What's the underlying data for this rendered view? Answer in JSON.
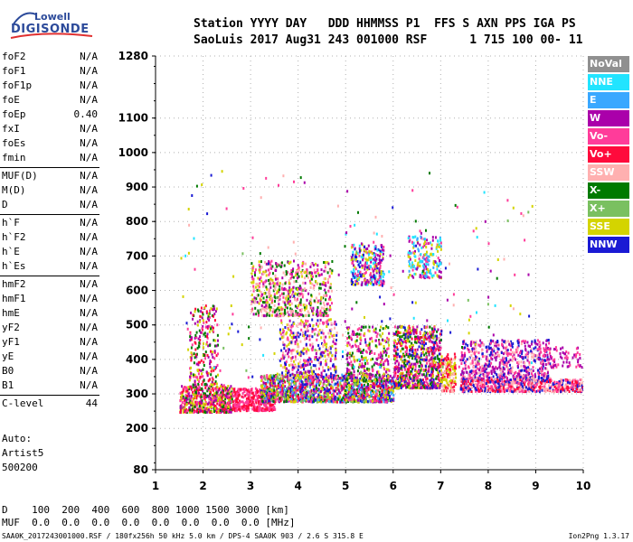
{
  "logo": {
    "line1": "Lowell",
    "line2": "DIGISONDE"
  },
  "header": {
    "labels": "Station YYYY DAY   DDD HHMMSS P1  FFS S AXN PPS IGA PS",
    "values": "SaoLuis 2017 Aug31 243 001000 RSF      1 715 100 00- 11"
  },
  "params": [
    {
      "name": "foF2",
      "value": "N/A"
    },
    {
      "name": "foF1",
      "value": "N/A"
    },
    {
      "name": "foF1p",
      "value": "N/A"
    },
    {
      "name": "foE",
      "value": "N/A"
    },
    {
      "name": "foEp",
      "value": "0.40"
    },
    {
      "name": "fxI",
      "value": "N/A"
    },
    {
      "name": "foEs",
      "value": "N/A"
    },
    {
      "name": "fmin",
      "value": "N/A"
    },
    {
      "name": "MUF(D)",
      "value": "N/A"
    },
    {
      "name": "M(D)",
      "value": "N/A"
    },
    {
      "name": "D",
      "value": "N/A"
    },
    {
      "name": "h`F",
      "value": "N/A"
    },
    {
      "name": "h`F2",
      "value": "N/A"
    },
    {
      "name": "h`E",
      "value": "N/A"
    },
    {
      "name": "h`Es",
      "value": "N/A"
    },
    {
      "name": "hmF2",
      "value": "N/A"
    },
    {
      "name": "hmF1",
      "value": "N/A"
    },
    {
      "name": "hmE",
      "value": "N/A"
    },
    {
      "name": "yF2",
      "value": "N/A"
    },
    {
      "name": "yF1",
      "value": "N/A"
    },
    {
      "name": "yE",
      "value": "N/A"
    },
    {
      "name": "B0",
      "value": "N/A"
    },
    {
      "name": "B1",
      "value": "N/A"
    },
    {
      "name": "C-level",
      "value": "44"
    }
  ],
  "auto": {
    "line1": "Auto:",
    "line2": "Artist5",
    "line3": "500200"
  },
  "legend": [
    {
      "label": "NoVal",
      "color": "#909090"
    },
    {
      "label": "NNE",
      "color": "#22e4ff"
    },
    {
      "label": "E",
      "color": "#3aa8ff"
    },
    {
      "label": "W",
      "color": "#aa00aa"
    },
    {
      "label": "Vo-",
      "color": "#ff3c9a"
    },
    {
      "label": "Vo+",
      "color": "#ff0a3c"
    },
    {
      "label": "SSW",
      "color": "#ffb0b0"
    },
    {
      "label": "X-",
      "color": "#007a00"
    },
    {
      "label": "X+",
      "color": "#7ac060"
    },
    {
      "label": "SSE",
      "color": "#d4d400"
    },
    {
      "label": "NNW",
      "color": "#1a1ad4"
    }
  ],
  "bottom": {
    "d_row": "D    100  200  400  600  800 1000 1500 3000 [km]",
    "muf_row": "MUF  0.0  0.0  0.0  0.0  0.0  0.0  0.0  0.0 [MHz]"
  },
  "footer": "SAA0K_2017243001000.RSF / 180fx256h 50 kHz 5.0 km / DPS-4 SAA0K 903 / 2.6 S 315.8 E",
  "version": "Ion2Png 1.3.17",
  "chart_data": {
    "type": "scatter",
    "xlabel": "",
    "ylabel": "",
    "xlim": [
      1,
      10
    ],
    "ylim": [
      80,
      1280
    ],
    "x_ticks": [
      "1",
      "2",
      "3",
      "4",
      "5",
      "6",
      "7",
      "8",
      "9",
      "10"
    ],
    "y_ticks": [
      "80",
      "200",
      "300",
      "400",
      "500",
      "600",
      "700",
      "800",
      "900",
      "1000",
      "1100",
      "1280"
    ],
    "y_tick_values": [
      80,
      200,
      300,
      400,
      500,
      600,
      700,
      800,
      900,
      1000,
      1100,
      1280
    ],
    "grid": true,
    "legend_position": "right",
    "clusters": [
      {
        "f": [
          1.5,
          2.6
        ],
        "h": [
          250,
          330
        ],
        "n": 520,
        "colors": [
          "#ff0a3c",
          "#ff3c9a",
          "#aa00aa",
          "#007a00",
          "#d4d400"
        ]
      },
      {
        "f": [
          2.6,
          3.5
        ],
        "h": [
          255,
          320
        ],
        "n": 380,
        "colors": [
          "#ff0a3c",
          "#ff3c9a"
        ]
      },
      {
        "f": [
          3.2,
          6.0
        ],
        "h": [
          280,
          360
        ],
        "n": 1400,
        "colors": [
          "#ff0a3c",
          "#ff3c9a",
          "#d4d400",
          "#007a00",
          "#7ac060",
          "#aa00aa",
          "#1a1ad4",
          "#3aa8ff"
        ]
      },
      {
        "f": [
          3.6,
          4.8
        ],
        "h": [
          350,
          520
        ],
        "n": 420,
        "colors": [
          "#aa00aa",
          "#ff3c9a",
          "#1a1ad4",
          "#d4d400",
          "#ffb0b0"
        ]
      },
      {
        "f": [
          5.0,
          5.9
        ],
        "h": [
          340,
          500
        ],
        "n": 300,
        "colors": [
          "#aa00aa",
          "#d4d400",
          "#007a00",
          "#ff3c9a"
        ]
      },
      {
        "f": [
          3.0,
          4.7
        ],
        "h": [
          530,
          690
        ],
        "n": 600,
        "colors": [
          "#d4d400",
          "#ffb0b0",
          "#aa00aa",
          "#ff3c9a",
          "#007a00"
        ]
      },
      {
        "f": [
          5.1,
          5.8
        ],
        "h": [
          620,
          740
        ],
        "n": 260,
        "colors": [
          "#aa00aa",
          "#ff3c9a",
          "#22e4ff",
          "#1a1ad4",
          "#d4d400"
        ]
      },
      {
        "f": [
          6.3,
          7.0
        ],
        "h": [
          640,
          760
        ],
        "n": 200,
        "colors": [
          "#aa00aa",
          "#22e4ff",
          "#3aa8ff",
          "#d4d400",
          "#ff3c9a"
        ]
      },
      {
        "f": [
          6.0,
          7.0
        ],
        "h": [
          320,
          500
        ],
        "n": 800,
        "colors": [
          "#ff0a3c",
          "#ff3c9a",
          "#aa00aa",
          "#d4d400",
          "#007a00",
          "#1a1ad4"
        ]
      },
      {
        "f": [
          7.0,
          7.3
        ],
        "h": [
          310,
          420
        ],
        "n": 150,
        "colors": [
          "#ff0a3c",
          "#d4d400",
          "#ffb0b0"
        ]
      },
      {
        "f": [
          7.4,
          9.3
        ],
        "h": [
          340,
          460
        ],
        "n": 700,
        "colors": [
          "#aa00aa",
          "#ff3c9a",
          "#ffb0b0",
          "#1a1ad4"
        ]
      },
      {
        "f": [
          7.4,
          10.0
        ],
        "h": [
          310,
          345
        ],
        "n": 600,
        "colors": [
          "#ff3c9a",
          "#ffb0b0",
          "#1a1ad4",
          "#ff0a3c"
        ]
      },
      {
        "f": [
          1.7,
          2.3
        ],
        "h": [
          330,
          560
        ],
        "n": 220,
        "colors": [
          "#aa00aa",
          "#ff0a3c",
          "#ff3c9a",
          "#d4d400",
          "#007a00"
        ]
      },
      {
        "f": [
          9.0,
          10.0
        ],
        "h": [
          380,
          440
        ],
        "n": 80,
        "colors": [
          "#aa00aa",
          "#ff3c9a"
        ]
      },
      {
        "f": [
          1.5,
          9.0
        ],
        "h": [
          350,
          950
        ],
        "n": 200,
        "colors": [
          "#aa00aa",
          "#d4d400",
          "#007a00",
          "#ff3c9a",
          "#ffb0b0",
          "#22e4ff",
          "#7ac060",
          "#1a1ad4"
        ]
      }
    ]
  }
}
